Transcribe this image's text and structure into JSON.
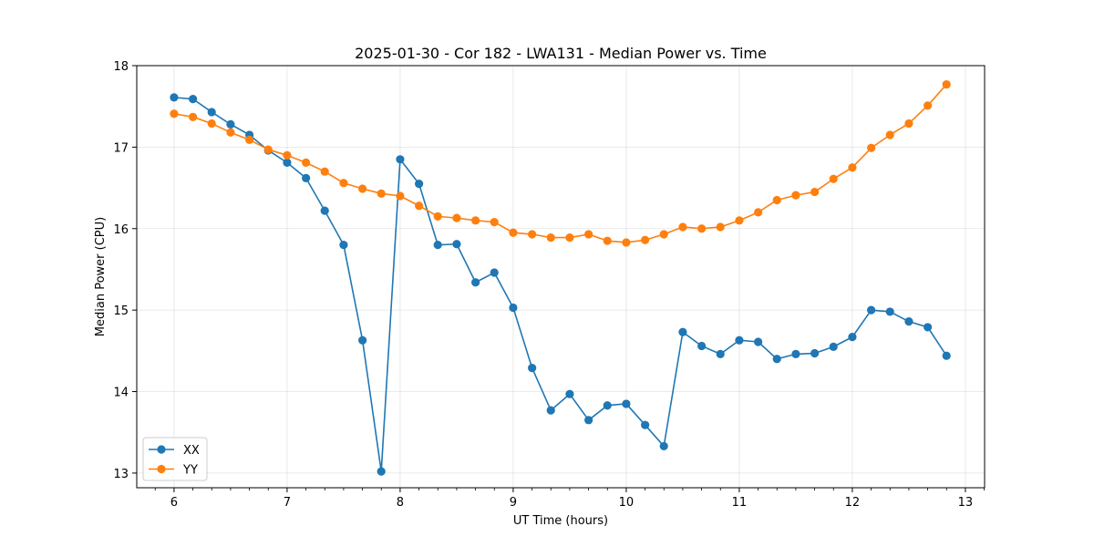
{
  "chart_data": {
    "type": "line",
    "title": "2025-01-30 - Cor 182 - LWA131 - Median Power vs. Time",
    "xlabel": "UT Time (hours)",
    "ylabel": "Median Power (CPU)",
    "xlim": [
      5.67,
      13.17
    ],
    "ylim": [
      12.82,
      18.0
    ],
    "x_ticks": [
      6,
      7,
      8,
      9,
      10,
      11,
      12,
      13
    ],
    "y_ticks": [
      13,
      14,
      15,
      16,
      17,
      18
    ],
    "grid": true,
    "legend_position": "lower-left",
    "x": [
      6.0,
      6.167,
      6.333,
      6.5,
      6.667,
      6.833,
      7.0,
      7.167,
      7.333,
      7.5,
      7.667,
      7.833,
      8.0,
      8.167,
      8.333,
      8.5,
      8.667,
      8.833,
      9.0,
      9.167,
      9.333,
      9.5,
      9.667,
      9.833,
      10.0,
      10.167,
      10.333,
      10.5,
      10.667,
      10.833,
      11.0,
      11.167,
      11.333,
      11.5,
      11.667,
      11.833,
      12.0,
      12.167,
      12.333,
      12.5,
      12.667,
      12.833
    ],
    "series": [
      {
        "name": "XX",
        "color": "#1f77b4",
        "values": [
          17.61,
          17.59,
          17.43,
          17.28,
          17.15,
          16.96,
          16.81,
          16.62,
          16.22,
          15.8,
          14.63,
          13.02,
          16.85,
          16.55,
          15.8,
          15.81,
          15.34,
          15.46,
          15.03,
          14.29,
          13.77,
          13.97,
          13.65,
          13.83,
          13.85,
          13.59,
          13.33,
          14.73,
          14.56,
          14.46,
          14.63,
          14.61,
          14.4,
          14.46,
          14.47,
          14.55,
          14.67,
          15.0,
          14.98,
          14.86,
          14.79,
          14.44
        ]
      },
      {
        "name": "YY",
        "color": "#ff7f0e",
        "values": [
          17.41,
          17.37,
          17.29,
          17.18,
          17.09,
          16.97,
          16.9,
          16.81,
          16.7,
          16.56,
          16.49,
          16.43,
          16.4,
          16.28,
          16.15,
          16.13,
          16.1,
          16.08,
          15.95,
          15.93,
          15.89,
          15.89,
          15.93,
          15.85,
          15.83,
          15.86,
          15.93,
          16.02,
          16.0,
          16.02,
          16.1,
          16.2,
          16.35,
          16.41,
          16.45,
          16.61,
          16.75,
          16.99,
          17.15,
          17.29,
          17.51,
          17.77
        ]
      }
    ]
  }
}
